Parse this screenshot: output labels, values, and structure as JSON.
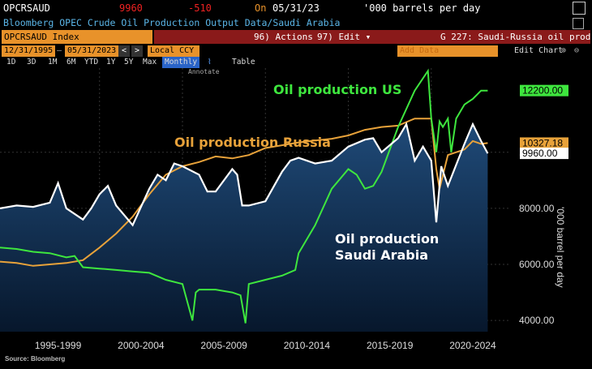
{
  "header": {
    "ticker": "OPCRSAUD",
    "value": "9960",
    "change": "-510",
    "on_label": "On",
    "date": "05/31/23",
    "units": "'000 barrels per day"
  },
  "subtitle": "Bloomberg OPEC Crude Oil Production Output Data/Saudi Arabia",
  "toolbar": {
    "index_label": "OPCRSAUD Index",
    "actions_label": "96) Actions ▾",
    "edit_label": "97) Edit ▾",
    "chart_name": "G 227: Saudi-Russia oil prod"
  },
  "range": {
    "start_date": "12/31/1995",
    "end_date": "05/31/2023",
    "currency": "Local CCY",
    "add_data_placeholder": "Add Data",
    "edit_chart_label": "Edit Chart"
  },
  "periods": [
    "1D",
    "3D",
    "1M",
    "6M",
    "YTD",
    "1Y",
    "5Y",
    "Max"
  ],
  "frequency": "Monthly",
  "table_label": "Table",
  "annotate_label": "Annotate",
  "source": "Source: Bloomberg",
  "colors": {
    "us": "#3ee63e",
    "russia": "#e8a23a",
    "saudi": "#ffffff",
    "area_top": "#1f4a78",
    "area_bottom": "#07172c"
  },
  "chart_data": {
    "type": "line",
    "ylabel": "'000 barrel per day",
    "ylim": [
      3600,
      13000
    ],
    "xlim": [
      1994.0,
      2024.8
    ],
    "y_ticks": [
      "4000.00",
      "6000.00",
      "8000.00",
      "10000.00"
    ],
    "x_ticks": [
      {
        "label": "1995-1999",
        "at": 1997.5
      },
      {
        "label": "2000-2004",
        "at": 2002.5
      },
      {
        "label": "2005-2009",
        "at": 2007.5
      },
      {
        "label": "2010-2014",
        "at": 2012.5
      },
      {
        "label": "2015-2019",
        "at": 2017.5
      },
      {
        "label": "2020-2024",
        "at": 2022.5
      }
    ],
    "annotations": {
      "us": "Oil production US",
      "russia": "Oil production Russia",
      "saudi_line1": "Oil production",
      "saudi_line2": "Saudi Arabia"
    },
    "last_values": {
      "us": "12200.00",
      "russia": "10327.18",
      "saudi": "9960.00"
    },
    "series": [
      {
        "name": "Oil production US",
        "x": [
          1994.0,
          1995,
          1996,
          1997,
          1998,
          1998.5,
          1999,
          2000,
          2001,
          2002,
          2003,
          2004,
          2005,
          2005.6,
          2005.8,
          2006,
          2007,
          2008,
          2008.5,
          2008.8,
          2009,
          2010,
          2011,
          2011.8,
          2012,
          2013,
          2014,
          2015,
          2015.5,
          2016,
          2016.5,
          2017,
          2018,
          2019,
          2019.8,
          2020.0,
          2020.3,
          2020.5,
          2020.7,
          2021,
          2021.2,
          2021.5,
          2022,
          2022.5,
          2023,
          2023.4
        ],
        "y": [
          6600,
          6550,
          6450,
          6400,
          6250,
          6300,
          5900,
          5850,
          5800,
          5750,
          5700,
          5450,
          5300,
          4000,
          5000,
          5100,
          5100,
          5000,
          4900,
          3900,
          5300,
          5450,
          5600,
          5800,
          6400,
          7400,
          8700,
          9400,
          9200,
          8700,
          8800,
          9300,
          10900,
          12200,
          12900,
          11200,
          10000,
          11100,
          10900,
          11200,
          10000,
          11200,
          11700,
          11900,
          12200,
          12200
        ]
      },
      {
        "name": "Oil production Russia",
        "x": [
          1994.0,
          1995,
          1996,
          1997,
          1998,
          1999,
          2000,
          2001,
          2002,
          2003,
          2004,
          2005,
          2006,
          2007,
          2008,
          2009,
          2010,
          2011,
          2012,
          2013,
          2014,
          2015,
          2016,
          2017,
          2018,
          2019,
          2020.0,
          2020.3,
          2020.5,
          2021,
          2022,
          2022.5,
          2023,
          2023.4
        ],
        "y": [
          6100,
          6050,
          5950,
          6000,
          6050,
          6150,
          6600,
          7100,
          7700,
          8500,
          9200,
          9500,
          9650,
          9850,
          9780,
          9900,
          10150,
          10250,
          10350,
          10420,
          10480,
          10600,
          10800,
          10900,
          10950,
          11200,
          11200,
          9400,
          8700,
          9900,
          10100,
          10400,
          10300,
          10327
        ]
      },
      {
        "name": "Oil production Saudi Arabia",
        "x": [
          1994.0,
          1995,
          1996,
          1997,
          1997.5,
          1998,
          1999,
          1999.5,
          2000,
          2000.5,
          2001,
          2002,
          2003,
          2003.5,
          2004,
          2004.5,
          2005,
          2006,
          2006.5,
          2007,
          2008,
          2008.3,
          2008.6,
          2009,
          2010,
          2011,
          2011.5,
          2012,
          2013,
          2014,
          2015,
          2016,
          2016.5,
          2017,
          2018,
          2018.5,
          2019,
          2019.5,
          2020,
          2020.3,
          2020.6,
          2021,
          2022,
          2022.5,
          2023,
          2023.4
        ],
        "y": [
          8000,
          8100,
          8050,
          8200,
          8900,
          8000,
          7600,
          8000,
          8500,
          8800,
          8100,
          7400,
          8700,
          9200,
          9000,
          9600,
          9500,
          9200,
          8600,
          8600,
          9400,
          9200,
          8100,
          8100,
          8250,
          9300,
          9700,
          9800,
          9600,
          9700,
          10200,
          10450,
          10500,
          10000,
          10500,
          11000,
          9700,
          10200,
          9700,
          7500,
          9500,
          8800,
          10300,
          11000,
          10400,
          9960
        ]
      }
    ]
  }
}
